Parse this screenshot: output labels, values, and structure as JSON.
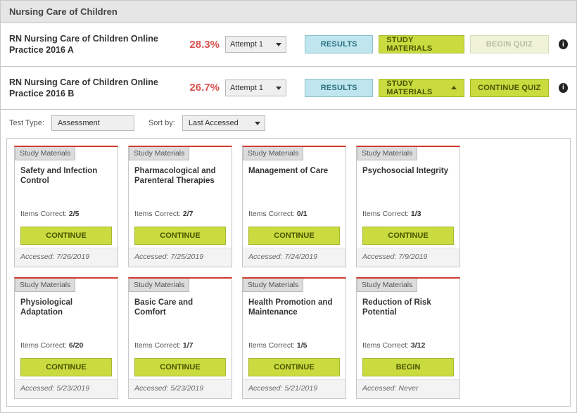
{
  "panel": {
    "title": "Nursing Care of Children"
  },
  "assessments": [
    {
      "title": "RN Nursing Care of Children Online Practice 2016 A",
      "score": "28.3%",
      "attempt": "Attempt 1",
      "results_label": "RESULTS",
      "study_label": "STUDY MATERIALS",
      "study_expanded": false,
      "action_label": "BEGIN QUIZ",
      "action_disabled": true
    },
    {
      "title": "RN Nursing Care of Children Online Practice 2016 B",
      "score": "26.7%",
      "attempt": "Attempt 1",
      "results_label": "RESULTS",
      "study_label": "STUDY MATERIALS",
      "study_expanded": true,
      "action_label": "CONTINUE QUIZ",
      "action_disabled": false
    }
  ],
  "filters": {
    "test_type_label": "Test Type:",
    "test_type_value": "Assessment",
    "sort_label": "Sort by:",
    "sort_value": "Last Accessed"
  },
  "card_tag": "Study Materials",
  "items_correct_label": "Items Correct:",
  "accessed_label": "Accessed:",
  "cards": [
    {
      "title": "Safety and Infection Control",
      "correct": "2/5",
      "btn": "CONTINUE",
      "accessed": "7/26/2019"
    },
    {
      "title": "Pharmacological and Parenteral Therapies",
      "correct": "2/7",
      "btn": "CONTINUE",
      "accessed": "7/25/2019"
    },
    {
      "title": "Management of Care",
      "correct": "0/1",
      "btn": "CONTINUE",
      "accessed": "7/24/2019"
    },
    {
      "title": "Psychosocial Integrity",
      "correct": "1/3",
      "btn": "CONTINUE",
      "accessed": "7/9/2019"
    },
    {
      "title": "Physiological Adaptation",
      "correct": "6/20",
      "btn": "CONTINUE",
      "accessed": "5/23/2019"
    },
    {
      "title": "Basic Care and Comfort",
      "correct": "1/7",
      "btn": "CONTINUE",
      "accessed": "5/23/2019"
    },
    {
      "title": "Health Promotion and Maintenance",
      "correct": "1/5",
      "btn": "CONTINUE",
      "accessed": "5/21/2019"
    },
    {
      "title": "Reduction of Risk Potential",
      "correct": "3/12",
      "btn": "BEGIN",
      "accessed": "Never"
    }
  ]
}
